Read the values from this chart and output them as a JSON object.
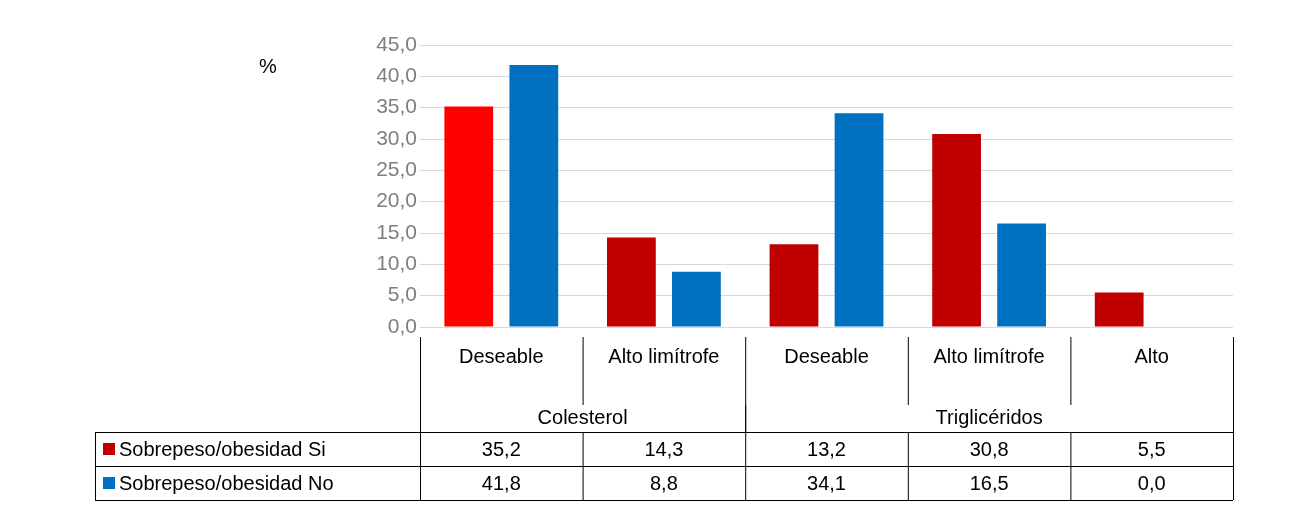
{
  "chart_data": {
    "type": "bar",
    "ylabel": "%",
    "categories": [
      "Deseable",
      "Alto limítrofe",
      "Deseable",
      "Alto limítrofe",
      "Alto"
    ],
    "series": [
      {
        "name": "Sobrepeso/obesidad Si",
        "color": "#c00000",
        "colors": [
          "#ff0000",
          "#c00000",
          "#c00000",
          "#c00000",
          "#c00000"
        ],
        "values": [
          35.2,
          14.3,
          13.2,
          30.8,
          5.5
        ],
        "value_labels": [
          "35,2",
          "14,3",
          "13,2",
          "30,8",
          "5,5"
        ]
      },
      {
        "name": "Sobrepeso/obesidad No",
        "color": "#0070c0",
        "values": [
          41.8,
          8.8,
          34.1,
          16.5,
          0.0
        ],
        "value_labels": [
          "41,8",
          "8,8",
          "34,1",
          "16,5",
          "0,0"
        ]
      }
    ],
    "annotations": [
      "Colesterol",
      "Triglicéridos"
    ],
    "ylim": [
      0,
      45
    ],
    "yticks": [
      {
        "value": 0,
        "label": "0,0"
      },
      {
        "value": 5,
        "label": "5,0"
      },
      {
        "value": 10,
        "label": "10,0"
      },
      {
        "value": 15,
        "label": "15,0"
      },
      {
        "value": 20,
        "label": "20,0"
      },
      {
        "value": 25,
        "label": "25,0"
      },
      {
        "value": 30,
        "label": "30,0"
      },
      {
        "value": 35,
        "label": "35,0"
      },
      {
        "value": 40,
        "label": "40,0"
      },
      {
        "value": 45,
        "label": "45,0"
      }
    ],
    "grid": "y",
    "legend": "bottom left"
  }
}
